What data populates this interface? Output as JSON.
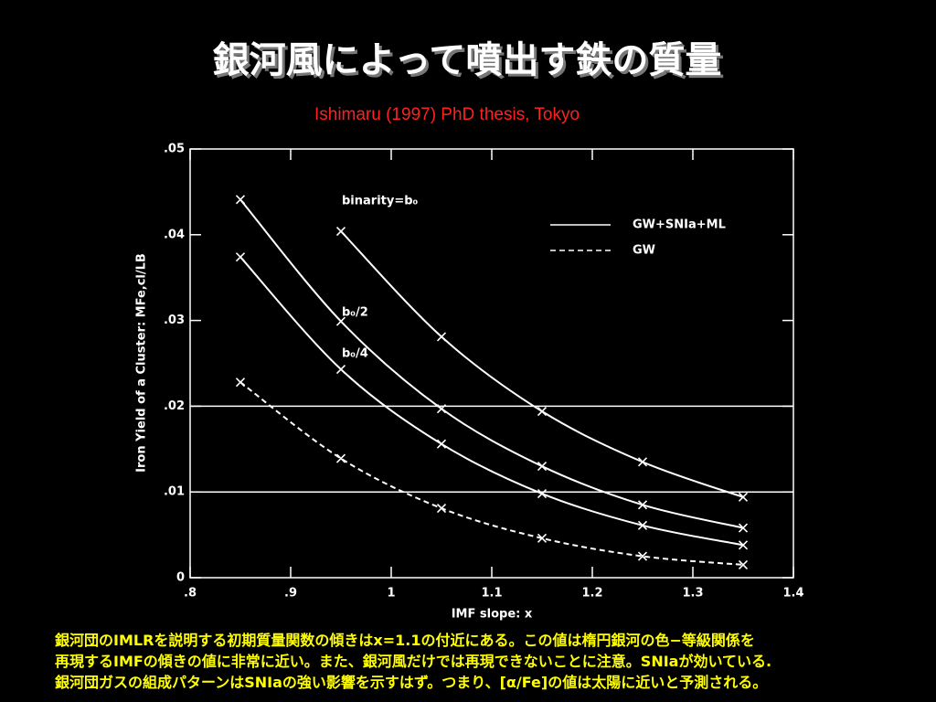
{
  "chart_data": {
    "type": "line",
    "title": "銀河風によって噴出す鉄の質量",
    "subtitle": "Ishimaru (1997) PhD thesis, Tokyo",
    "x_label": "IMF slope: x",
    "y_label": "Iron Yield of a Cluster: MFe,cl/LB",
    "x": [
      0.85,
      0.95,
      1.05,
      1.15,
      1.25,
      1.35
    ],
    "series": [
      {
        "label": "binarity=b₀",
        "color": "#ffffff",
        "dash": "solid",
        "values": [
          null,
          0.0404,
          0.0281,
          0.0194,
          0.0135,
          0.0094
        ]
      },
      {
        "label": "b₀/2",
        "color": "#ffffff",
        "dash": "solid",
        "values": [
          0.0441,
          0.0299,
          0.0197,
          0.013,
          0.0085,
          0.0058
        ]
      },
      {
        "label": "b₀/4",
        "color": "#ffffff",
        "dash": "solid",
        "values": [
          0.0374,
          0.0243,
          0.0156,
          0.0098,
          0.0061,
          0.0038
        ]
      },
      {
        "color": "#ffffff",
        "dash": "dashed",
        "values": [
          0.0228,
          0.0139,
          0.0081,
          0.0046,
          0.0025,
          0.0015
        ]
      }
    ],
    "legend": [
      {
        "label": "GW+SNIa+ML",
        "dash": "solid"
      },
      {
        "label": "GW",
        "dash": "dashed"
      }
    ],
    "legend_position": "upper right",
    "hlines": [
      0.02,
      0.01
    ],
    "xlim": [
      0.8,
      1.4
    ],
    "xticks": [
      {
        "value": 0.8,
        "label": ".8"
      },
      {
        "value": 0.9,
        "label": ".9"
      },
      1,
      1.1,
      1.2,
      1.3,
      1.4
    ],
    "ylim": [
      0,
      0.05
    ],
    "yticks": [
      0,
      {
        "value": 0.01,
        "label": ".01"
      },
      {
        "value": 0.02,
        "label": ".02"
      },
      {
        "value": 0.03,
        "label": ".03"
      },
      {
        "value": 0.04,
        "label": ".04"
      },
      {
        "value": 0.05,
        "label": ".05"
      }
    ],
    "caption": [
      "銀河団のIMLRを説明する初期質量関数の傾きはx=1.1の付近にある。この値は楕円銀河の色−等級関係を",
      "再現するIMFの傾きの値に非常に近い。また、銀河風だけでは再現できないことに注意。SNIaが効いている.",
      "銀河団ガスの組成パターンはSNIaの強い影響を示すはず。つまり、[α/Fe]の値は太陽に近いと予測される。"
    ]
  }
}
